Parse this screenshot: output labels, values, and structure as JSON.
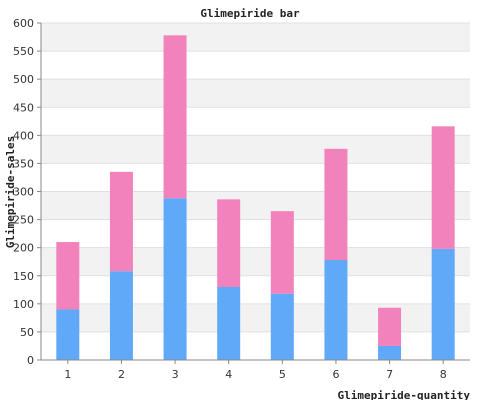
{
  "chart_data": {
    "type": "bar",
    "stacked": true,
    "title": "Glimepiride bar",
    "xlabel": "Glimepiride-quantity",
    "ylabel": "Glimepiride-sales",
    "categories": [
      "1",
      "2",
      "3",
      "4",
      "5",
      "6",
      "7",
      "8"
    ],
    "series": [
      {
        "color": "#60a8f8",
        "values": [
          90,
          158,
          288,
          130,
          118,
          178,
          25,
          198
        ]
      },
      {
        "color": "#f282bc",
        "values": [
          120,
          177,
          290,
          156,
          147,
          198,
          68,
          218
        ]
      }
    ],
    "ylim": [
      0,
      600
    ],
    "yticks": [
      0,
      50,
      100,
      150,
      200,
      250,
      300,
      350,
      400,
      450,
      500,
      550,
      600
    ],
    "grid": true,
    "band_colors": [
      "#f2f2f2",
      "#ffffff"
    ]
  }
}
